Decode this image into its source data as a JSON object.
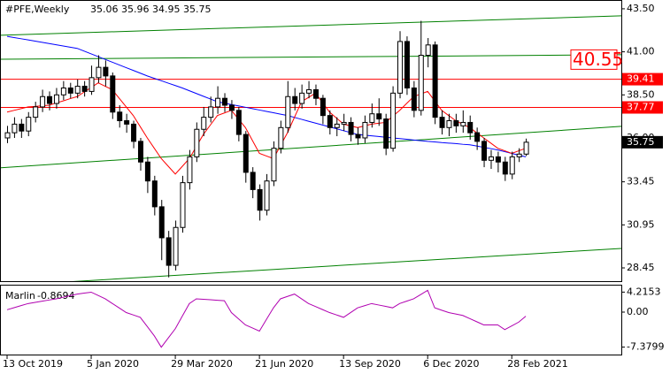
{
  "chart_data": {
    "type": "candlestick",
    "symbol": "#PFE,Weekly",
    "categories": [
      "13 Oct 2019",
      null,
      null,
      null,
      null,
      null,
      null,
      null,
      null,
      null,
      null,
      null,
      "5 Jan 2020",
      null,
      null,
      null,
      null,
      null,
      null,
      null,
      null,
      null,
      null,
      null,
      "29 Mar 2020",
      null,
      null,
      null,
      null,
      null,
      null,
      null,
      null,
      null,
      null,
      null,
      "21 Jun 2020",
      null,
      null,
      null,
      null,
      null,
      null,
      null,
      null,
      null,
      null,
      null,
      "13 Sep 2020",
      null,
      null,
      null,
      null,
      null,
      null,
      null,
      null,
      null,
      null,
      null,
      "6 Dec 2020",
      null,
      null,
      null,
      null,
      null,
      null,
      null,
      null,
      null,
      null,
      null,
      "28 Feb 2021",
      null,
      null
    ],
    "open": [
      36.0,
      36.3,
      36.8,
      36.4,
      37.2,
      37.8,
      38.4,
      38.0,
      38.5,
      38.9,
      38.6,
      39.0,
      38.7,
      39.5,
      40.1,
      39.6,
      37.5,
      37.0,
      36.8,
      35.8,
      34.6,
      33.5,
      32.0,
      30.2,
      28.6,
      30.8,
      33.4,
      34.9,
      36.5,
      37.2,
      37.8,
      38.3,
      37.9,
      37.6,
      36.2,
      34.0,
      33.0,
      31.8,
      33.5,
      35.4,
      36.6,
      38.4,
      38.0,
      38.6,
      38.8,
      38.3,
      37.3,
      36.6,
      36.8,
      36.9,
      36.2,
      36.0,
      36.9,
      37.4,
      37.1,
      35.4,
      38.6,
      41.6,
      38.9,
      37.6,
      40.8,
      41.4,
      37.2,
      36.6,
      37.0,
      36.7,
      36.9,
      36.3,
      35.8,
      34.7,
      34.9,
      34.6,
      33.9,
      34.9,
      35.06
    ],
    "high": [
      36.7,
      37.2,
      37.1,
      37.5,
      38.1,
      38.8,
      38.7,
      38.9,
      39.3,
      39.2,
      39.4,
      39.3,
      40.2,
      40.8,
      40.5,
      39.8,
      37.9,
      37.4,
      37.0,
      36.0,
      34.9,
      33.8,
      32.4,
      30.6,
      31.2,
      33.8,
      35.3,
      36.9,
      37.8,
      38.4,
      39.0,
      38.6,
      38.2,
      37.8,
      36.4,
      34.3,
      33.3,
      33.9,
      35.8,
      37.0,
      39.3,
      38.9,
      39.1,
      39.3,
      39.1,
      38.5,
      37.6,
      37.2,
      37.4,
      37.2,
      36.6,
      37.3,
      38.0,
      38.3,
      37.4,
      39.0,
      42.2,
      41.9,
      39.3,
      42.8,
      41.8,
      41.6,
      37.6,
      37.4,
      37.4,
      37.6,
      37.3,
      36.6,
      36.0,
      35.3,
      35.2,
      34.9,
      35.2,
      35.4,
      35.96
    ],
    "low": [
      35.7,
      36.0,
      36.0,
      36.1,
      36.9,
      37.5,
      37.6,
      37.7,
      38.2,
      38.3,
      38.3,
      38.4,
      38.5,
      39.2,
      39.0,
      37.1,
      36.6,
      36.3,
      35.4,
      34.1,
      32.8,
      31.5,
      28.9,
      27.9,
      28.3,
      30.5,
      33.0,
      34.6,
      36.1,
      36.9,
      37.4,
      37.5,
      37.1,
      35.8,
      33.4,
      32.5,
      31.2,
      31.5,
      33.2,
      35.1,
      36.3,
      37.6,
      37.7,
      38.3,
      37.9,
      36.8,
      36.2,
      36.1,
      36.4,
      35.8,
      35.6,
      35.7,
      36.6,
      36.7,
      35.0,
      35.2,
      38.3,
      38.5,
      37.2,
      37.3,
      40.1,
      36.8,
      36.2,
      36.1,
      36.3,
      36.3,
      35.9,
      35.3,
      34.3,
      34.2,
      34.0,
      33.5,
      33.6,
      34.6,
      34.95
    ],
    "close": [
      36.3,
      36.8,
      36.4,
      37.2,
      37.8,
      38.4,
      38.0,
      38.5,
      38.9,
      38.6,
      39.0,
      38.7,
      39.5,
      40.1,
      39.6,
      37.5,
      37.0,
      36.8,
      35.8,
      34.6,
      33.5,
      32.0,
      30.2,
      28.6,
      30.8,
      33.4,
      34.9,
      36.5,
      37.2,
      37.8,
      38.3,
      37.9,
      37.6,
      36.2,
      34.0,
      33.0,
      31.8,
      33.5,
      35.4,
      36.6,
      38.4,
      38.0,
      38.6,
      38.8,
      38.3,
      37.3,
      36.6,
      36.8,
      36.9,
      36.2,
      36.0,
      36.9,
      37.4,
      37.1,
      35.4,
      38.6,
      41.6,
      38.9,
      37.6,
      40.8,
      41.4,
      37.2,
      36.6,
      37.0,
      36.7,
      36.9,
      36.3,
      35.8,
      34.7,
      34.9,
      34.6,
      33.9,
      34.9,
      35.06,
      35.75
    ],
    "ylim": [
      27.68,
      44.01
    ],
    "yticks": [
      {
        "value": 43.5,
        "label": "43.50"
      },
      {
        "value": 41.0,
        "label": "41.00"
      },
      {
        "value": 38.5,
        "label": "38.50"
      },
      {
        "value": 36.0,
        "label": "36.00"
      },
      {
        "value": 33.45,
        "label": "33.45"
      },
      {
        "value": 30.95,
        "label": "30.95"
      },
      {
        "value": 28.45,
        "label": "28.45"
      }
    ],
    "moving_averages": [
      {
        "color": "#0000ff",
        "values": [
          41.9,
          41.83,
          41.76,
          41.69,
          41.62,
          41.55,
          41.48,
          41.41,
          41.34,
          41.27,
          41.2,
          41.04,
          40.88,
          40.72,
          40.56,
          40.4,
          40.24,
          40.08,
          39.92,
          39.76,
          39.6,
          39.46,
          39.32,
          39.18,
          39.04,
          38.9,
          38.74,
          38.58,
          38.42,
          38.26,
          38.1,
          38.02,
          37.94,
          37.86,
          37.78,
          37.7,
          37.62,
          37.54,
          37.46,
          37.38,
          37.3,
          37.19,
          37.08,
          36.97,
          36.86,
          36.75,
          36.64,
          36.53,
          36.42,
          36.31,
          36.2,
          36.16,
          36.12,
          36.08,
          36.04,
          36.0,
          35.96,
          35.92,
          35.88,
          35.84,
          35.8,
          35.77,
          35.73,
          35.7,
          35.67,
          35.63,
          35.6,
          35.53,
          35.45,
          35.38,
          35.3,
          35.2,
          35.1,
          35.0,
          34.9
        ]
      },
      {
        "color": "#ff0000",
        "values": [
          37.5,
          37.6,
          37.7,
          37.8,
          37.83,
          37.87,
          37.9,
          38.03,
          38.15,
          38.28,
          38.4,
          38.67,
          38.93,
          39.2,
          39.0,
          38.8,
          38.3,
          37.8,
          37.3,
          36.65,
          36.0,
          35.4,
          34.8,
          34.35,
          33.9,
          34.35,
          34.8,
          35.5,
          36.2,
          36.75,
          37.3,
          37.45,
          37.6,
          37.1,
          36.6,
          35.85,
          35.1,
          34.95,
          34.8,
          35.55,
          36.3,
          37.2,
          38.1,
          38.35,
          38.6,
          38.05,
          37.5,
          37.15,
          36.8,
          36.7,
          36.6,
          36.7,
          36.8,
          36.85,
          36.9,
          37.25,
          37.6,
          38.0,
          38.4,
          38.55,
          38.7,
          38.15,
          37.6,
          37.3,
          37.0,
          36.8,
          36.6,
          36.3,
          36.0,
          35.7,
          35.4,
          35.25,
          35.1,
          35.25,
          35.4
        ]
      }
    ],
    "trend_lines": [
      {
        "color": "#008000",
        "values": [
          41.96,
          43.09
        ]
      },
      {
        "color": "#008000",
        "values": [
          40.57,
          40.83
        ]
      },
      {
        "color": "#008000",
        "values": [
          34.26,
          36.67
        ]
      },
      {
        "color": "#008000",
        "values": [
          27.4,
          29.58
        ]
      }
    ],
    "levels": [
      {
        "value": 39.41,
        "color": "#ff0000"
      },
      {
        "value": 37.77,
        "color": "#ff0000"
      }
    ],
    "annotation": {
      "value": 40.55,
      "color": "#ff0000"
    },
    "indicator": {
      "name": "Marlin",
      "value": -0.8694,
      "color": "#b000b0",
      "ylim": [
        -8.95,
        5.59
      ],
      "yticks": [
        4.2153,
        {
          "value": 0,
          "label": "0.00"
        },
        -7.3799
      ],
      "values": [
        0.5,
        0.93,
        1.37,
        1.8,
        2.05,
        2.3,
        2.55,
        2.8,
        3.13,
        3.47,
        3.8,
        4.0,
        4.2,
        3.5,
        2.8,
        1.83,
        0.87,
        -0.1,
        -0.6,
        -1.1,
        -3.05,
        -5.0,
        -7.4,
        -5.45,
        -3.5,
        -0.85,
        1.8,
        2.8,
        2.7,
        2.6,
        2.5,
        2.4,
        -0.1,
        -1.4,
        -2.7,
        -3.35,
        -4.0,
        -1.55,
        0.9,
        2.8,
        3.3,
        3.8,
        2.8,
        1.8,
        1.17,
        0.53,
        -0.1,
        -0.6,
        -1.1,
        -0.1,
        0.9,
        1.35,
        1.8,
        1.5,
        1.2,
        0.9,
        1.8,
        2.3,
        2.8,
        3.7,
        4.6,
        0.9,
        0.4,
        -0.1,
        -0.4,
        -0.7,
        -1.37,
        -2.03,
        -2.7,
        -2.7,
        -2.7,
        -3.7,
        -2.9,
        -2.1,
        -0.8694
      ]
    }
  }
}
